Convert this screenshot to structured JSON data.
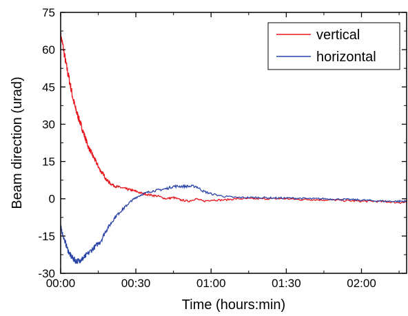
{
  "chart_data": {
    "type": "line",
    "title": "",
    "xlabel": "Time (hours:min)",
    "ylabel": "Beam direction (urad)",
    "xlim": [
      0,
      138
    ],
    "ylim": [
      -30,
      75
    ],
    "x_ticks": [
      {
        "value": 0,
        "label": "00:00"
      },
      {
        "value": 30,
        "label": "00:30"
      },
      {
        "value": 60,
        "label": "01:00"
      },
      {
        "value": 90,
        "label": "01:30"
      },
      {
        "value": 120,
        "label": "02:00"
      }
    ],
    "y_ticks": [
      {
        "value": -30,
        "label": "-30"
      },
      {
        "value": -15,
        "label": "-15"
      },
      {
        "value": 0,
        "label": "0"
      },
      {
        "value": 15,
        "label": "15"
      },
      {
        "value": 30,
        "label": "30"
      },
      {
        "value": 45,
        "label": "45"
      },
      {
        "value": 60,
        "label": "60"
      },
      {
        "value": 75,
        "label": "75"
      }
    ],
    "grid": false,
    "legend_position": "top-right",
    "series": [
      {
        "name": "vertical",
        "color": "#e8141c",
        "x": [
          0,
          1,
          2,
          3,
          4,
          5,
          6,
          7,
          8,
          9,
          10,
          11,
          12,
          13,
          14,
          15,
          16,
          17,
          18,
          19,
          20,
          22,
          24,
          26,
          28,
          30,
          33,
          36,
          39,
          42,
          45,
          48,
          51,
          54,
          57,
          60,
          65,
          70,
          75,
          80,
          85,
          90,
          95,
          100,
          105,
          110,
          115,
          120,
          125,
          130,
          135,
          138
        ],
        "y": [
          66,
          61,
          55,
          50,
          45,
          40,
          36,
          33,
          30,
          27,
          24,
          21,
          19,
          17,
          15,
          13,
          11,
          10,
          8,
          7,
          6,
          5,
          4.5,
          4,
          3.5,
          3,
          2,
          1.5,
          1,
          0,
          0.5,
          -0.5,
          -1,
          0,
          -1,
          -0.5,
          -0.5,
          0,
          0,
          0,
          0,
          0,
          -0.3,
          -0.3,
          -0.5,
          -0.5,
          -0.8,
          -1,
          -1,
          -1.2,
          -1.5,
          -1.5
        ]
      },
      {
        "name": "horizontal",
        "color": "#2a44a8",
        "x": [
          0,
          1,
          2,
          3,
          4,
          5,
          6,
          7,
          8,
          9,
          10,
          12,
          14,
          16,
          18,
          20,
          22,
          24,
          26,
          28,
          30,
          33,
          36,
          39,
          42,
          45,
          48,
          51,
          54,
          57,
          60,
          65,
          70,
          75,
          80,
          85,
          90,
          95,
          100,
          105,
          110,
          115,
          120,
          125,
          130,
          135,
          138
        ],
        "y": [
          -11,
          -15,
          -18,
          -21,
          -23,
          -24,
          -25,
          -25,
          -24.5,
          -24,
          -23,
          -21,
          -19,
          -17,
          -13,
          -10,
          -7,
          -5,
          -3,
          -1,
          0.5,
          2,
          3,
          3.5,
          4,
          5,
          5,
          5,
          5,
          3,
          2,
          1,
          0.5,
          0.5,
          0.5,
          0.3,
          0.3,
          0.2,
          0,
          0,
          -0.2,
          -0.3,
          -0.5,
          -0.8,
          -1,
          -1,
          -1
        ]
      }
    ]
  }
}
